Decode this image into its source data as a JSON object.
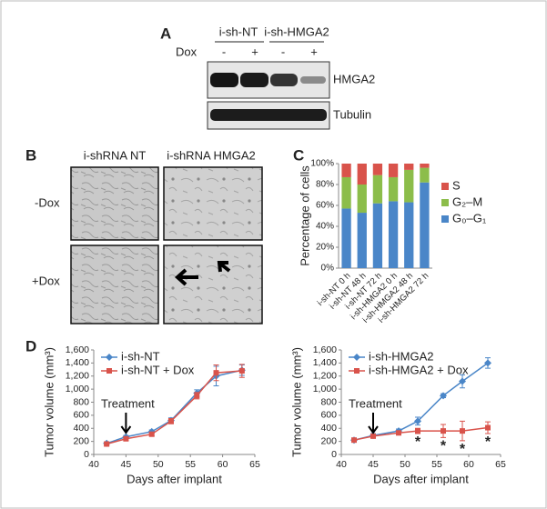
{
  "blot": {
    "label": "A",
    "groups": [
      "i-sh-NT",
      "i-sh-HMGA2"
    ],
    "treatment": "Dox",
    "lanes": [
      "-",
      "+",
      "-",
      "+"
    ],
    "bands": [
      "HMGA2",
      "Tubulin"
    ]
  },
  "micrographs": {
    "label": "B",
    "columns": [
      "i-shRNA NT",
      "i-shRNA HMGA2"
    ],
    "rows": [
      "-Dox",
      "+Dox"
    ]
  },
  "chart_data": [
    {
      "type": "bar",
      "stacked": true,
      "label": "C",
      "y_label": "Percentage of cells",
      "categories": [
        "i-sh-NT 0 h",
        "i-sh-NT 48 h",
        "i-sh-NT 72 h",
        "i-sh-HMGA2 0 h",
        "i-sh-HMGA2 48 h",
        "i-sh-HMGA2 72 h"
      ],
      "series": [
        {
          "name": "G₀–G₁",
          "color": "#4a86c8",
          "values": [
            57,
            53,
            62,
            64,
            63,
            82
          ]
        },
        {
          "name": "G₂–M",
          "color": "#8cbd4a",
          "values": [
            30,
            27,
            27,
            23,
            31,
            14
          ]
        },
        {
          "name": "S",
          "color": "#d9534b",
          "values": [
            13,
            20,
            11,
            13,
            6,
            4
          ]
        }
      ],
      "ylim": [
        0,
        100
      ],
      "yticks": [
        {
          "value": 0,
          "label": "0%"
        },
        {
          "value": 20,
          "label": "20%"
        },
        {
          "value": 40,
          "label": "40%"
        },
        {
          "value": 60,
          "label": "60%"
        },
        {
          "value": 80,
          "label": "80%"
        },
        {
          "value": 100,
          "label": "100%"
        }
      ],
      "legend": "right",
      "grid": false
    },
    {
      "type": "line",
      "label": "D",
      "x_label": "Days after implant",
      "y_label": "Tumor volume (mm³)",
      "x": [
        42,
        45,
        49,
        52,
        56,
        59,
        63
      ],
      "series": [
        {
          "name": "i-sh-NT",
          "color": "#4a86c8",
          "marker": "diamond",
          "values": [
            170,
            270,
            350,
            520,
            940,
            1200,
            1290
          ],
          "errors": [
            20,
            20,
            25,
            40,
            50,
            150,
            80
          ]
        },
        {
          "name": "i-sh-NT + Dox",
          "color": "#d9534b",
          "marker": "square",
          "values": [
            160,
            240,
            310,
            510,
            900,
            1250,
            1280
          ],
          "errors": [
            20,
            20,
            25,
            40,
            50,
            120,
            100
          ]
        }
      ],
      "xlim": [
        40,
        65
      ],
      "xticks": [
        40,
        45,
        50,
        55,
        60,
        65
      ],
      "ylim": [
        0,
        1600
      ],
      "yticks": [
        0,
        200,
        400,
        600,
        800,
        {
          "value": 1000,
          "label": "1,000"
        },
        {
          "value": 1200,
          "label": "1,200"
        },
        {
          "value": 1400,
          "label": "1,400"
        },
        {
          "value": 1600,
          "label": "1,600"
        }
      ],
      "annotation": {
        "text": "Treatment",
        "x": 45
      },
      "legend": "upper left",
      "grid": false
    },
    {
      "type": "line",
      "x_label": "Days after implant",
      "y_label": "Tumor volume (mm³)",
      "x": [
        42,
        45,
        49,
        52,
        56,
        59,
        63
      ],
      "series": [
        {
          "name": "i-sh-HMGA2",
          "color": "#4a86c8",
          "marker": "diamond",
          "values": [
            220,
            290,
            360,
            510,
            900,
            1120,
            1400
          ],
          "errors": [
            20,
            30,
            30,
            60,
            30,
            100,
            80
          ]
        },
        {
          "name": "i-sh-HMGA2 + Dox",
          "color": "#d9534b",
          "marker": "square",
          "values": [
            220,
            280,
            330,
            360,
            360,
            360,
            410
          ],
          "errors": [
            20,
            30,
            30,
            40,
            100,
            150,
            90
          ]
        }
      ],
      "xlim": [
        40,
        65
      ],
      "xticks": [
        40,
        45,
        50,
        55,
        60,
        65
      ],
      "ylim": [
        0,
        1600
      ],
      "yticks": [
        0,
        200,
        400,
        600,
        800,
        {
          "value": 1000,
          "label": "1,000"
        },
        {
          "value": 1200,
          "label": "1,200"
        },
        {
          "value": 1400,
          "label": "1,400"
        },
        {
          "value": 1600,
          "label": "1,600"
        }
      ],
      "annotation": {
        "text": "Treatment",
        "x": 45
      },
      "significance": {
        "text": "*",
        "x": [
          52,
          56,
          59,
          63
        ]
      },
      "legend": "upper left",
      "grid": false
    }
  ]
}
